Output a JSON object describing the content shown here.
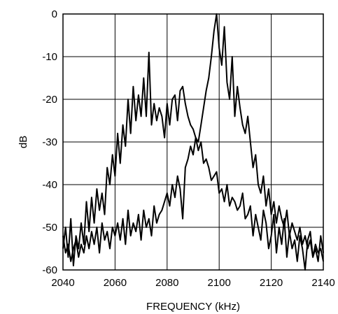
{
  "chart_data": {
    "type": "line",
    "title": "",
    "xlabel": "FREQUENCY (kHz)",
    "ylabel": "dB",
    "xlim": [
      2040,
      2140
    ],
    "ylim": [
      -60,
      0
    ],
    "x_ticks": [
      2040,
      2060,
      2080,
      2100,
      2120,
      2140
    ],
    "y_ticks": [
      0,
      -10,
      -20,
      -30,
      -40,
      -50,
      -60
    ],
    "grid": true,
    "legend": "none",
    "series": [
      {
        "x": [
          2040,
          2041,
          2042,
          2043,
          2044,
          2045,
          2046,
          2047,
          2048,
          2049,
          2050,
          2051,
          2052,
          2053,
          2054,
          2055,
          2056,
          2057,
          2058,
          2059,
          2060,
          2061,
          2062,
          2063,
          2064,
          2065,
          2066,
          2067,
          2068,
          2069,
          2070,
          2071,
          2072,
          2073,
          2074,
          2075,
          2076,
          2077,
          2078,
          2079,
          2080,
          2081,
          2082,
          2083,
          2084,
          2085,
          2086,
          2087,
          2088,
          2089,
          2090,
          2091,
          2092,
          2093,
          2094,
          2095,
          2096,
          2097,
          2098,
          2099,
          2100,
          2101,
          2102,
          2103,
          2104,
          2105,
          2106,
          2107,
          2108,
          2109,
          2110,
          2111,
          2112,
          2113,
          2114,
          2115,
          2116,
          2117,
          2118,
          2119,
          2120,
          2121,
          2122,
          2123,
          2124,
          2125,
          2126,
          2127,
          2128,
          2129,
          2130,
          2131,
          2132,
          2133,
          2134,
          2135,
          2136,
          2137,
          2138,
          2139,
          2140
        ],
        "values": [
          -55,
          -50,
          -57,
          -48,
          -59,
          -52,
          -55,
          -49,
          -54,
          -44,
          -51,
          -43,
          -49,
          -41,
          -46,
          -42,
          -47,
          -36,
          -40,
          -33,
          -38,
          -28,
          -35,
          -26,
          -31,
          -20,
          -28,
          -17,
          -25,
          -19,
          -24,
          -15,
          -24,
          -9,
          -26,
          -21,
          -25,
          -22,
          -24,
          -29,
          -21,
          -26,
          -20,
          -19,
          -25,
          -18,
          -17,
          -21,
          -24,
          -26,
          -27,
          -29,
          -32,
          -30,
          -35,
          -34,
          -36,
          -39,
          -38,
          -37,
          -42,
          -41,
          -44,
          -40,
          -45,
          -43,
          -44,
          -46,
          -45,
          -42,
          -48,
          -47,
          -45,
          -52,
          -47,
          -50,
          -53,
          -46,
          -49,
          -55,
          -52,
          -47,
          -56,
          -50,
          -54,
          -48,
          -57,
          -51,
          -55,
          -53,
          -58,
          -52,
          -55,
          -60,
          -53,
          -51,
          -57,
          -55,
          -58,
          -52,
          -56
        ]
      },
      {
        "x": [
          2040,
          2041,
          2042,
          2043,
          2044,
          2045,
          2046,
          2047,
          2048,
          2049,
          2050,
          2051,
          2052,
          2053,
          2054,
          2055,
          2056,
          2057,
          2058,
          2059,
          2060,
          2061,
          2062,
          2063,
          2064,
          2065,
          2066,
          2067,
          2068,
          2069,
          2070,
          2071,
          2072,
          2073,
          2074,
          2075,
          2076,
          2077,
          2078,
          2079,
          2080,
          2081,
          2082,
          2083,
          2084,
          2085,
          2086,
          2087,
          2088,
          2089,
          2090,
          2091,
          2092,
          2093,
          2094,
          2095,
          2096,
          2097,
          2098,
          2099,
          2100,
          2101,
          2102,
          2103,
          2104,
          2105,
          2106,
          2107,
          2108,
          2109,
          2110,
          2111,
          2112,
          2113,
          2114,
          2115,
          2116,
          2117,
          2118,
          2119,
          2120,
          2121,
          2122,
          2123,
          2124,
          2125,
          2126,
          2127,
          2128,
          2129,
          2130,
          2131,
          2132,
          2133,
          2134,
          2135,
          2136,
          2137,
          2138,
          2139,
          2140
        ],
        "values": [
          -52,
          -56,
          -54,
          -58,
          -55,
          -53,
          -57,
          -54,
          -56,
          -52,
          -55,
          -51,
          -54,
          -50,
          -56,
          -49,
          -53,
          -51,
          -55,
          -50,
          -52,
          -49,
          -53,
          -48,
          -54,
          -46,
          -52,
          -49,
          -51,
          -47,
          -53,
          -46,
          -50,
          -48,
          -52,
          -45,
          -49,
          -47,
          -46,
          -44,
          -42,
          -45,
          -40,
          -43,
          -38,
          -41,
          -48,
          -36,
          -34,
          -31,
          -33,
          -29,
          -30,
          -26,
          -22,
          -18,
          -15,
          -10,
          -4,
          0,
          -8,
          -12,
          -3,
          -16,
          -20,
          -10,
          -24,
          -17,
          -22,
          -26,
          -28,
          -24,
          -30,
          -36,
          -33,
          -40,
          -42,
          -38,
          -45,
          -41,
          -47,
          -44,
          -49,
          -45,
          -48,
          -50,
          -46,
          -52,
          -49,
          -51,
          -53,
          -50,
          -54,
          -52,
          -55,
          -53,
          -57,
          -54,
          -56,
          -55,
          -58
        ]
      }
    ]
  }
}
